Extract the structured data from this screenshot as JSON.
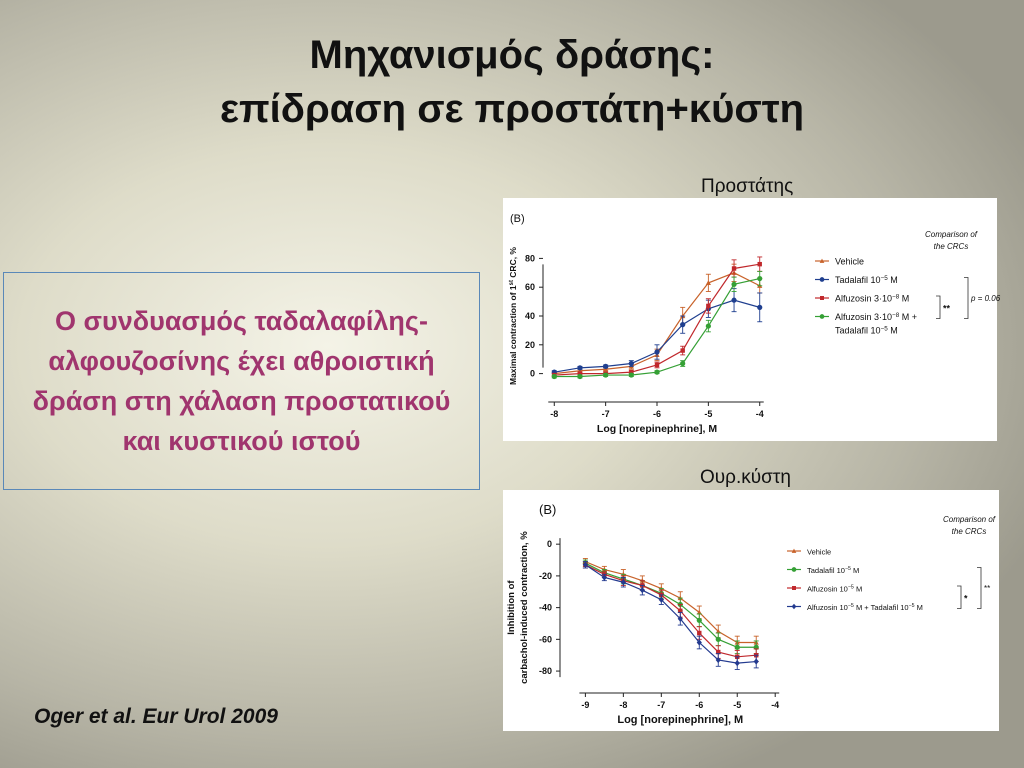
{
  "slide": {
    "title_line1": "Μηχανισμός δράσης:",
    "title_line2": "επίδραση σε προστάτη+κύστη",
    "summary": "Ο συνδυασμός ταδαλαφίλης-αλφουζοσίνης έχει αθροιστική δράση στη χάλαση προστατικού και κυστικού ιστού",
    "citation": "Oger et al. Eur Urol 2009",
    "caption_prostate": "Προστάτης",
    "caption_bladder": "Ουρ.κύστη"
  },
  "chart_data": [
    {
      "type": "line",
      "panel_label": "(B)",
      "xlabel": "Log [norepinephrine], M",
      "ylabel_pre": "Maximal contraction of 1",
      "ylabel_sup": "st",
      "ylabel_post": " CRC, %",
      "xlim": [
        -8.2,
        -3.8
      ],
      "ylim": [
        -10,
        90
      ],
      "xticks": [
        -8,
        -7,
        -6,
        -5,
        -4
      ],
      "yticks": [
        0,
        20,
        40,
        60,
        80
      ],
      "x": [
        -8,
        -7.5,
        -7,
        -6.5,
        -6,
        -5.5,
        -5,
        -4.5,
        -4
      ],
      "legend_title_line1": "Comparison of",
      "legend_title_line2": "the CRCs",
      "series": [
        {
          "name": "Vehicle",
          "color": "#c8622a",
          "marker": "triangle",
          "values": [
            0,
            2,
            3,
            5,
            13,
            40,
            63,
            70,
            61
          ],
          "err": [
            1,
            1,
            1,
            2,
            4,
            6,
            6,
            6,
            5
          ]
        },
        {
          "name": "Tadalafil 10",
          "sup": "−5",
          "suffix": " M",
          "color": "#1f3f8f",
          "marker": "circle",
          "values": [
            1,
            4,
            5,
            7,
            15,
            34,
            45,
            51,
            46
          ],
          "err": [
            1,
            1,
            1,
            2,
            5,
            6,
            6,
            8,
            10
          ]
        },
        {
          "name": "Alfuzosin 3·10",
          "sup": "−8",
          "suffix": " M",
          "color": "#c0282c",
          "marker": "square",
          "values": [
            -1,
            0,
            0,
            1,
            6,
            16,
            47,
            73,
            76
          ],
          "err": [
            1,
            1,
            1,
            1,
            2,
            3,
            5,
            6,
            5
          ]
        },
        {
          "name": "Alfuzosin 3·10",
          "sup": "−8",
          "suffix": " M +",
          "line2_prefix": "Tadalafil 10",
          "line2_sup": "−5",
          "line2_suffix": " M",
          "color": "#35a035",
          "marker": "circle",
          "values": [
            -2,
            -2,
            -1,
            -1,
            1,
            7,
            33,
            62,
            66
          ],
          "err": [
            1,
            1,
            1,
            1,
            1,
            2,
            4,
            5,
            5
          ]
        }
      ],
      "significance_inner": "**",
      "significance_outer": "p = 0.06"
    },
    {
      "type": "line",
      "panel_label": "(B)",
      "xlabel": "Log [norepinephrine], M",
      "ylabel_line1": "Inhibition of",
      "ylabel_line2": "carbachol-induced contraction, %",
      "xlim": [
        -9.3,
        -3.9
      ],
      "ylim": [
        -85,
        2
      ],
      "xticks": [
        -9,
        -8,
        -7,
        -6,
        -5,
        -4
      ],
      "yticks": [
        0,
        -20,
        -40,
        -60,
        -80
      ],
      "x": [
        -9,
        -8.5,
        -8,
        -7.5,
        -7,
        -6.5,
        -6,
        -5.5,
        -5,
        -4.5
      ],
      "legend_title_line1": "Comparison of",
      "legend_title_line2": "the CRCs",
      "series": [
        {
          "name": "Vehicle",
          "color": "#c8622a",
          "marker": "triangle",
          "values": [
            -11,
            -16,
            -19,
            -23,
            -28,
            -34,
            -43,
            -55,
            -62,
            -62
          ],
          "err": [
            2,
            2,
            3,
            3,
            3,
            4,
            4,
            4,
            4,
            4
          ]
        },
        {
          "name": "Tadalafil 10",
          "sup": "−5",
          "suffix": " M",
          "color": "#35a035",
          "marker": "circle",
          "values": [
            -12,
            -18,
            -22,
            -26,
            -31,
            -38,
            -48,
            -60,
            -65,
            -65
          ],
          "err": [
            2,
            2,
            3,
            3,
            3,
            4,
            4,
            4,
            4,
            4
          ]
        },
        {
          "name": "Alfuzosin 10",
          "sup": "−5",
          "suffix": " M",
          "color": "#c0282c",
          "marker": "square",
          "values": [
            -13,
            -19,
            -23,
            -26,
            -32,
            -42,
            -56,
            -68,
            -71,
            -70
          ],
          "err": [
            2,
            2,
            3,
            3,
            3,
            4,
            4,
            4,
            4,
            4
          ]
        },
        {
          "name": "Alfuzosin 10",
          "sup": "−5",
          "suffix": " M + Tadalafil 10",
          "sup2": "−5",
          "suffix2": " M",
          "color": "#233a8f",
          "marker": "diamond",
          "values": [
            -13,
            -21,
            -24,
            -29,
            -35,
            -47,
            -62,
            -73,
            -75,
            -74
          ],
          "err": [
            2,
            2,
            3,
            3,
            3,
            4,
            4,
            4,
            4,
            4
          ]
        }
      ],
      "significance_inner": "*",
      "significance_outer": "**"
    }
  ]
}
